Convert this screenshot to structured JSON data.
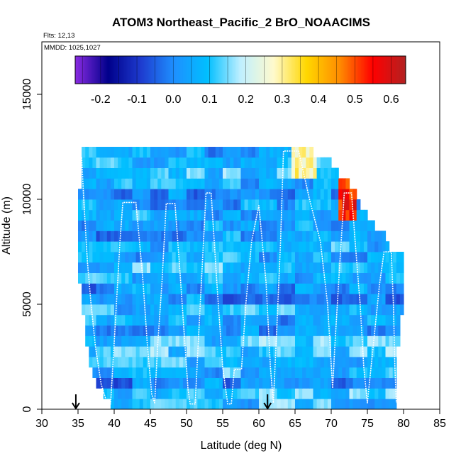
{
  "chart_data": {
    "type": "heatmap",
    "title": "ATOM3 Northeast_Pacific_2 BrO_NOAACIMS",
    "flights_label": "Flts: 12,13",
    "dates_label": "MMDD: 1025,1027",
    "xlabel": "Latitude (deg N)",
    "ylabel": "Altitude (m)",
    "xlim": [
      30,
      85
    ],
    "ylim": [
      0,
      17500
    ],
    "x_ticks": [
      "30",
      "35",
      "40",
      "45",
      "50",
      "55",
      "60",
      "65",
      "70",
      "75",
      "80",
      "85"
    ],
    "y_ticks": [
      "0",
      "5000",
      "10000",
      "15000"
    ],
    "colorbar": {
      "range": [
        -0.27,
        0.64
      ],
      "tick_values": [
        -0.2,
        -0.1,
        0.0,
        0.1,
        0.2,
        0.3,
        0.4,
        0.5,
        0.6
      ],
      "tick_labels": [
        "-0.2",
        "-0.1",
        "0.0",
        "0.1",
        "0.2",
        "0.3",
        "0.4",
        "0.5",
        "0.6"
      ],
      "colors": [
        "#8a2be2",
        "#00008b",
        "#1e3ccf",
        "#1e90ff",
        "#00bfff",
        "#bfefff",
        "#fffacd",
        "#ffd700",
        "#ff8c00",
        "#ff0000",
        "#b22222"
      ]
    },
    "markers_latitude": [
      34.7,
      61.2
    ],
    "band_altitude_step": 500,
    "band_ranges": [
      {
        "alt": 250,
        "lat": [
          39.5,
          79.0
        ]
      },
      {
        "alt": 750,
        "lat": [
          38.5,
          79.0
        ]
      },
      {
        "alt": 1250,
        "lat": [
          37.5,
          79.0
        ]
      },
      {
        "alt": 1750,
        "lat": [
          37.0,
          79.0
        ]
      },
      {
        "alt": 2250,
        "lat": [
          36.5,
          79.0
        ]
      },
      {
        "alt": 2750,
        "lat": [
          36.5,
          79.0
        ]
      },
      {
        "alt": 3250,
        "lat": [
          36.0,
          79.5
        ]
      },
      {
        "alt": 3750,
        "lat": [
          36.0,
          79.5
        ]
      },
      {
        "alt": 4250,
        "lat": [
          36.0,
          79.5
        ]
      },
      {
        "alt": 4750,
        "lat": [
          35.5,
          80.0
        ]
      },
      {
        "alt": 5250,
        "lat": [
          35.5,
          80.0
        ]
      },
      {
        "alt": 5750,
        "lat": [
          35.5,
          80.0
        ]
      },
      {
        "alt": 6250,
        "lat": [
          35.0,
          80.0
        ]
      },
      {
        "alt": 6750,
        "lat": [
          35.0,
          80.0
        ]
      },
      {
        "alt": 7250,
        "lat": [
          35.0,
          80.0
        ]
      },
      {
        "alt": 7750,
        "lat": [
          35.0,
          78.0
        ]
      },
      {
        "alt": 8250,
        "lat": [
          35.0,
          77.5
        ]
      },
      {
        "alt": 8750,
        "lat": [
          35.0,
          76.0
        ]
      },
      {
        "alt": 9250,
        "lat": [
          35.0,
          75.0
        ]
      },
      {
        "alt": 9750,
        "lat": [
          35.0,
          74.0
        ]
      },
      {
        "alt": 10250,
        "lat": [
          35.0,
          73.5
        ]
      },
      {
        "alt": 10750,
        "lat": [
          35.5,
          72.5
        ]
      },
      {
        "alt": 11250,
        "lat": [
          35.5,
          71.0
        ]
      },
      {
        "alt": 11750,
        "lat": [
          35.5,
          70.0
        ]
      },
      {
        "alt": 12250,
        "lat": [
          35.5,
          67.5
        ]
      }
    ],
    "flight_track": [
      [
        35.5,
        12000
      ],
      [
        35.8,
        9900
      ],
      [
        36.3,
        7000
      ],
      [
        36.8,
        5000
      ],
      [
        37.4,
        3000
      ],
      [
        38.2,
        1200
      ],
      [
        39.0,
        300
      ],
      [
        39.5,
        250
      ],
      [
        39.8,
        2000
      ],
      [
        40.3,
        5000
      ],
      [
        40.8,
        8000
      ],
      [
        41.2,
        9850
      ],
      [
        43.0,
        9850
      ],
      [
        43.5,
        8000
      ],
      [
        44.0,
        6000
      ],
      [
        44.6,
        3000
      ],
      [
        45.2,
        700
      ],
      [
        45.6,
        300
      ],
      [
        46.0,
        3000
      ],
      [
        46.6,
        6000
      ],
      [
        47.2,
        9800
      ],
      [
        48.4,
        9800
      ],
      [
        49.0,
        7000
      ],
      [
        49.6,
        4000
      ],
      [
        50.2,
        1000
      ],
      [
        50.5,
        250
      ],
      [
        51.2,
        250
      ],
      [
        51.6,
        3000
      ],
      [
        52.2,
        7000
      ],
      [
        52.7,
        10300
      ],
      [
        53.4,
        10300
      ],
      [
        54.2,
        6000
      ],
      [
        55.0,
        2000
      ],
      [
        55.7,
        250
      ],
      [
        56.2,
        250
      ],
      [
        56.6,
        1900
      ],
      [
        57.6,
        1900
      ],
      [
        58.2,
        5000
      ],
      [
        59.0,
        8000
      ],
      [
        60.0,
        9700
      ],
      [
        61.0,
        6000
      ],
      [
        61.6,
        2000
      ],
      [
        62.0,
        300
      ],
      [
        62.5,
        4000
      ],
      [
        63.0,
        8000
      ],
      [
        63.4,
        12300
      ],
      [
        65.5,
        12300
      ],
      [
        67.0,
        10000
      ],
      [
        68.5,
        8000
      ],
      [
        69.5,
        5000
      ],
      [
        70.2,
        1000
      ],
      [
        70.5,
        3000
      ],
      [
        71.2,
        7000
      ],
      [
        71.8,
        10300
      ],
      [
        72.8,
        10300
      ],
      [
        73.3,
        8000
      ],
      [
        74.0,
        5000
      ],
      [
        74.5,
        2000
      ],
      [
        75.0,
        300
      ],
      [
        75.8,
        3000
      ],
      [
        76.7,
        6000
      ],
      [
        77.3,
        7500
      ],
      [
        78.3,
        7500
      ],
      [
        78.6,
        5000
      ],
      [
        78.8,
        2000
      ],
      [
        79.0,
        300
      ]
    ]
  }
}
